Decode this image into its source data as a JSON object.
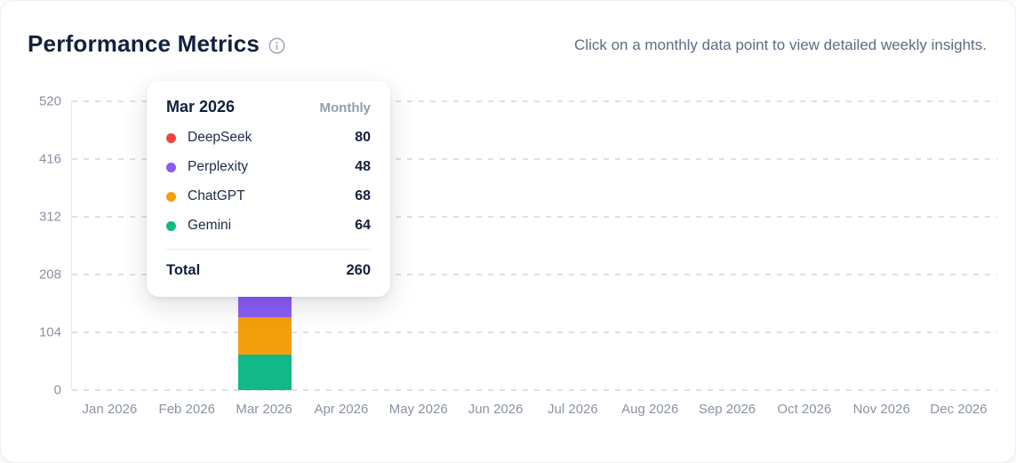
{
  "header": {
    "title": "Performance Metrics",
    "hint": "Click on a monthly data point to view detailed weekly insights."
  },
  "chart_data": {
    "type": "bar",
    "stacked": true,
    "title": "Performance Metrics",
    "categories": [
      "Jan 2026",
      "Feb 2026",
      "Mar 2026",
      "Apr 2026",
      "May 2026",
      "Jun 2026",
      "Jul 2026",
      "Aug 2026",
      "Sep 2026",
      "Oct 2026",
      "Nov 2026",
      "Dec 2026"
    ],
    "series": [
      {
        "name": "Gemini",
        "color": "#12b886",
        "values": [
          0,
          0,
          64,
          0,
          0,
          0,
          0,
          0,
          0,
          0,
          0,
          0
        ]
      },
      {
        "name": "ChatGPT",
        "color": "#f59e0b",
        "values": [
          0,
          0,
          68,
          0,
          0,
          0,
          0,
          0,
          0,
          0,
          0,
          0
        ]
      },
      {
        "name": "Perplexity",
        "color": "#8b5cf6",
        "values": [
          0,
          0,
          48,
          0,
          0,
          0,
          0,
          0,
          0,
          0,
          0,
          0
        ]
      },
      {
        "name": "DeepSeek",
        "color": "#ef4444",
        "values": [
          0,
          0,
          80,
          0,
          0,
          0,
          0,
          0,
          0,
          0,
          0,
          0
        ]
      }
    ],
    "y_ticks": [
      0,
      104,
      208,
      312,
      416,
      520
    ],
    "ylim": [
      0,
      520
    ],
    "grid": "dashed-horizontal",
    "legend_position": "none"
  },
  "tooltip": {
    "title": "Mar 2026",
    "period_label": "Monthly",
    "rows": [
      {
        "label": "DeepSeek",
        "value": "80",
        "color": "#ef4444"
      },
      {
        "label": "Perplexity",
        "value": "48",
        "color": "#8b5cf6"
      },
      {
        "label": "ChatGPT",
        "value": "68",
        "color": "#f59e0b"
      },
      {
        "label": "Gemini",
        "value": "64",
        "color": "#12b886"
      }
    ],
    "total_label": "Total",
    "total_value": "260"
  }
}
